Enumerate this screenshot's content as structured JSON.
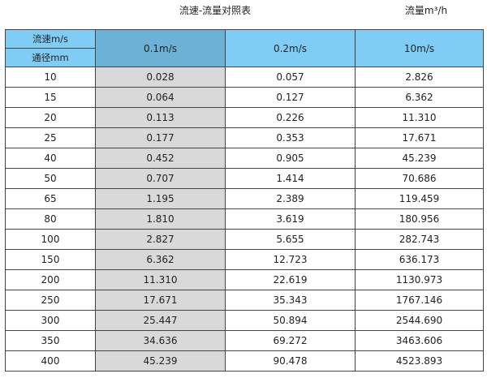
{
  "title": "流速-流量对照表",
  "unit_label": "流量m³/h",
  "header": {
    "velocity_label": "流速m/s",
    "diameter_label": "通径mm",
    "columns": [
      "0.1m/s",
      "0.2m/s",
      "10m/s"
    ]
  },
  "colors": {
    "header": "#7fcdf4",
    "header_highlight": "#6cb2d6",
    "column_highlight": "#d9d9d9"
  },
  "rows": [
    [
      "10",
      "0.028",
      "0.057",
      "2.826"
    ],
    [
      "15",
      "0.064",
      "0.127",
      "6.362"
    ],
    [
      "20",
      "0.113",
      "0.226",
      "11.310"
    ],
    [
      "25",
      "0.177",
      "0.353",
      "17.671"
    ],
    [
      "40",
      "0.452",
      "0.905",
      "45.239"
    ],
    [
      "50",
      "0.707",
      "1.414",
      "70.686"
    ],
    [
      "65",
      "1.195",
      "2.389",
      "119.459"
    ],
    [
      "80",
      "1.810",
      "3.619",
      "180.956"
    ],
    [
      "100",
      "2.827",
      "5.655",
      "282.743"
    ],
    [
      "150",
      "6.362",
      "12.723",
      "636.173"
    ],
    [
      "200",
      "11.310",
      "22.619",
      "1130.973"
    ],
    [
      "250",
      "17.671",
      "35.343",
      "1767.146"
    ],
    [
      "300",
      "25.447",
      "50.894",
      "2544.690"
    ],
    [
      "350",
      "34.636",
      "69.272",
      "3463.606"
    ],
    [
      "400",
      "45.239",
      "90.478",
      "4523.893"
    ]
  ]
}
